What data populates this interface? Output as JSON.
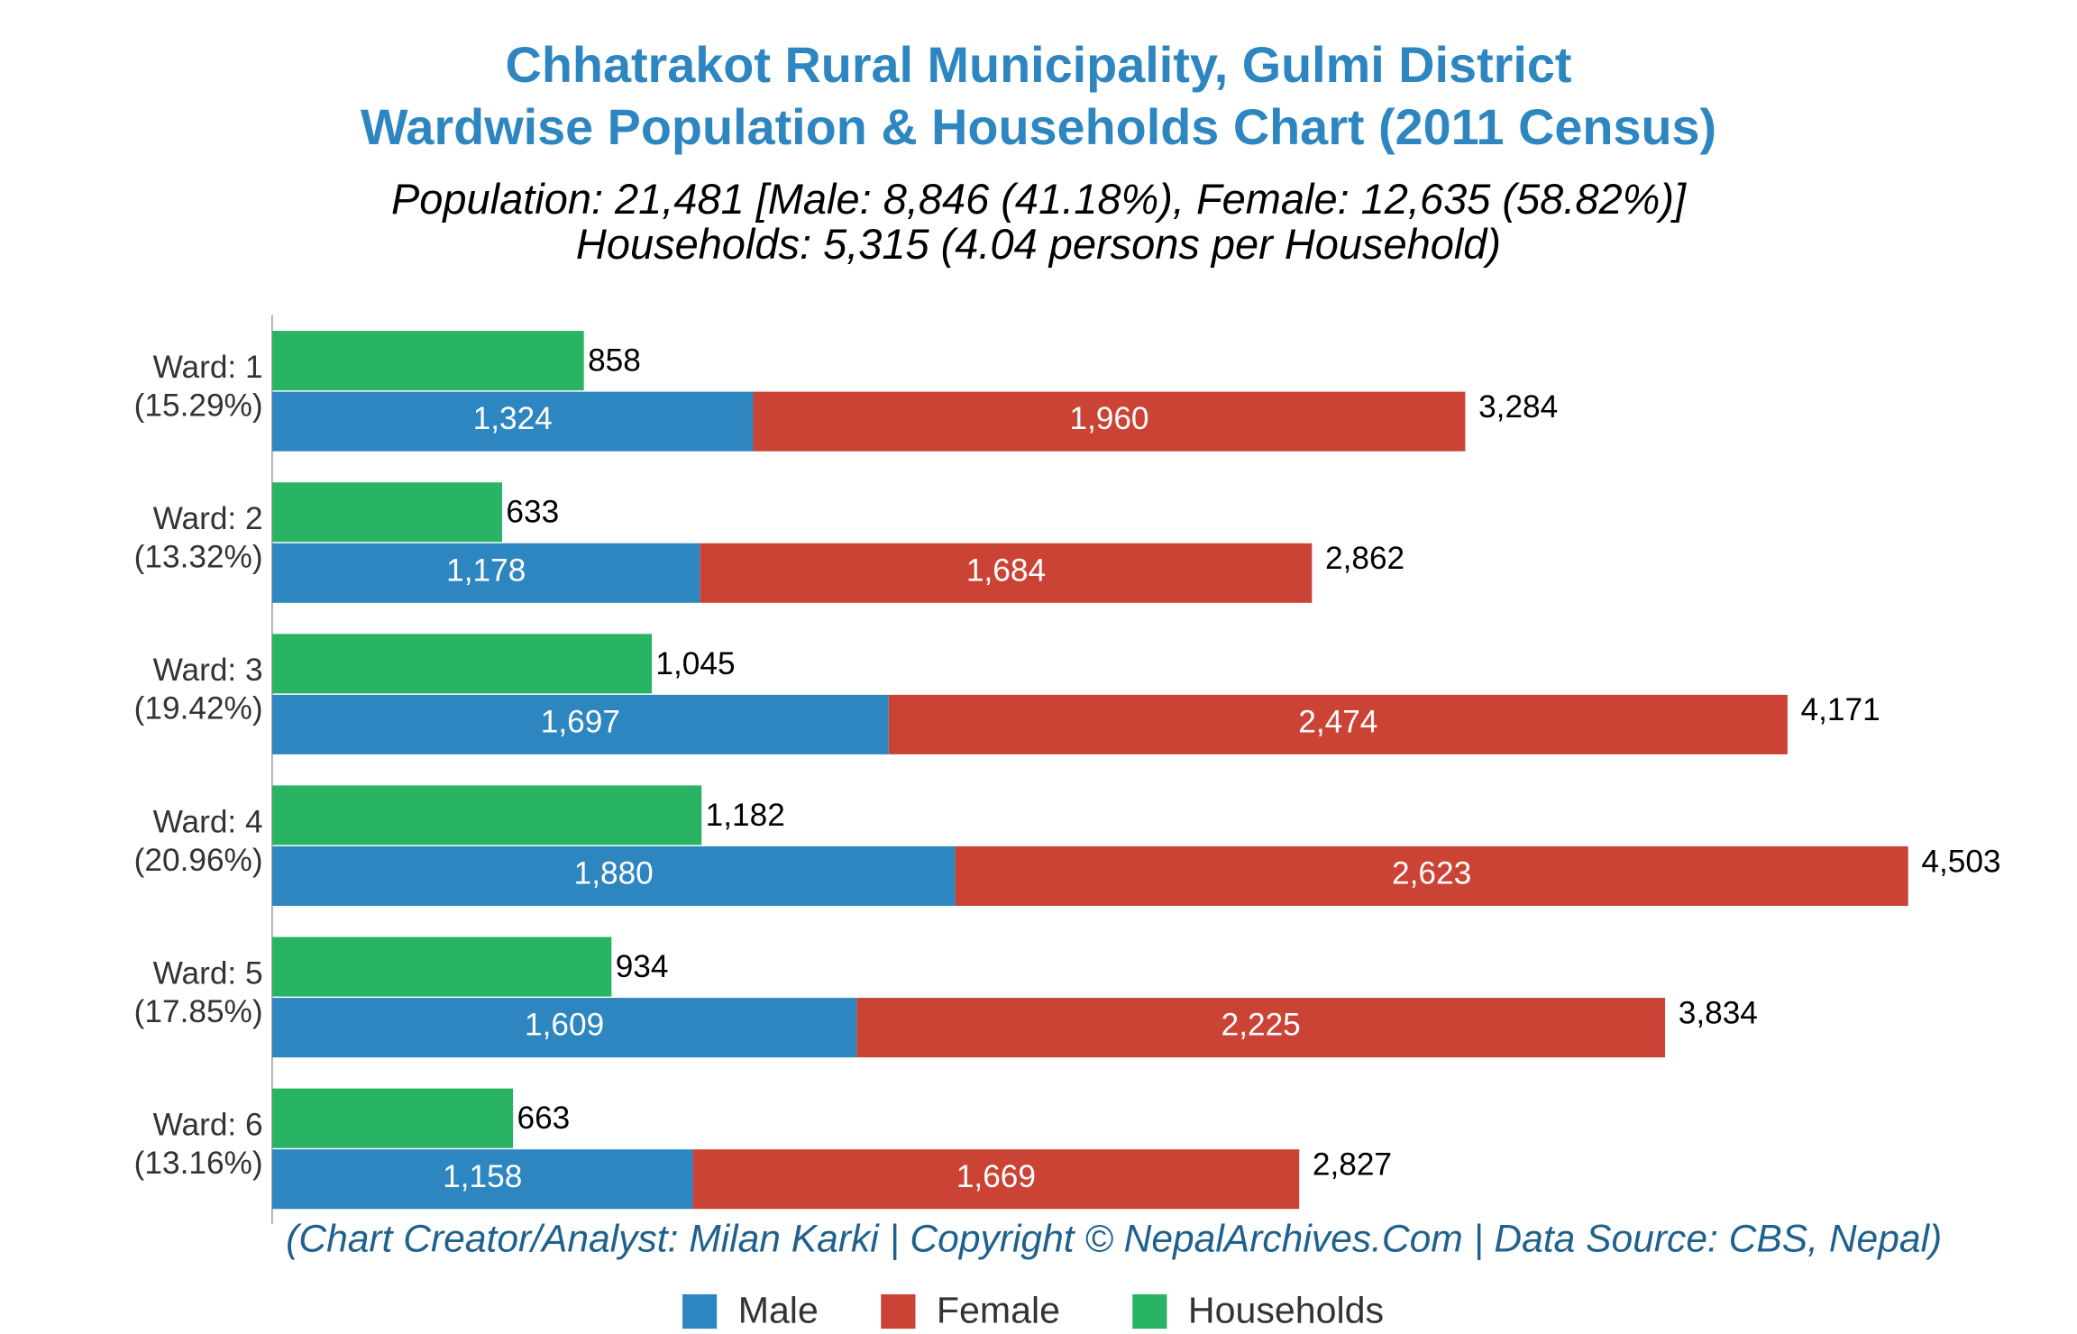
{
  "chart_data": {
    "type": "grouped-stacked-barh",
    "title_lines": [
      "Chhatrakot Rural Municipality, Gulmi District",
      "Wardwise Population & Households Chart (2011 Census)"
    ],
    "subtitle_lines": [
      "Population: 21,481 [Male: 8,846 (41.18%), Female: 12,635 (58.82%)]",
      "Households: 5,315 (4.04 persons per Household)"
    ],
    "footer": "(Chart Creator/Analyst: Milan Karki | Copyright © NepalArchives.Com | Data Source: CBS, Nepal)",
    "categories": [
      "Ward: 1",
      "Ward: 2",
      "Ward: 3",
      "Ward: 4",
      "Ward: 5",
      "Ward: 6"
    ],
    "share_labels": [
      "(15.29%)",
      "(13.32%)",
      "(19.42%)",
      "(20.96%)",
      "(17.85%)",
      "(13.16%)"
    ],
    "series": [
      {
        "name": "Male",
        "color": "#2e86c1",
        "stack": "population",
        "values": [
          1324,
          1178,
          1697,
          1880,
          1609,
          1158
        ],
        "value_labels": [
          "1,324",
          "1,178",
          "1,697",
          "1,880",
          "1,609",
          "1,158"
        ]
      },
      {
        "name": "Female",
        "color": "#cb4335",
        "stack": "population",
        "values": [
          1960,
          1684,
          2474,
          2623,
          2225,
          1669
        ],
        "value_labels": [
          "1,960",
          "1,684",
          "2,474",
          "2,623",
          "2,225",
          "1,669"
        ]
      },
      {
        "name": "Households",
        "color": "#28b463",
        "stack": "households",
        "values": [
          858,
          633,
          1045,
          1182,
          934,
          663
        ],
        "value_labels": [
          "858",
          "633",
          "1,045",
          "1,182",
          "934",
          "663"
        ]
      }
    ],
    "totals": {
      "values": [
        3284,
        2862,
        4171,
        4503,
        3834,
        2827
      ],
      "value_labels": [
        "3,284",
        "2,862",
        "4,171",
        "4,503",
        "3,834",
        "2,827"
      ]
    },
    "xlim": [
      0,
      4900
    ],
    "grid": false,
    "legend": "bottom"
  }
}
